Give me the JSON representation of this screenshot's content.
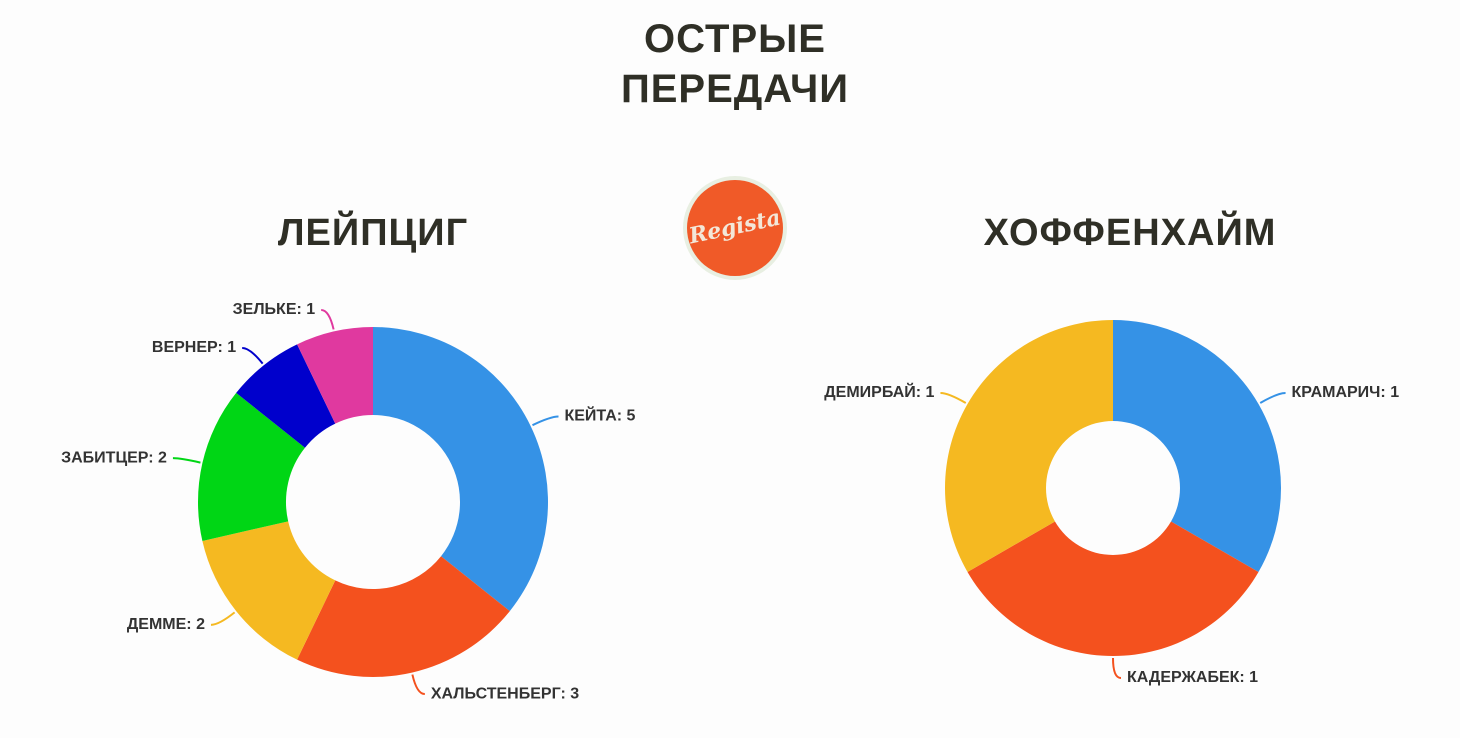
{
  "title": "ОСТРЫЕ ПЕРЕДАЧИ",
  "logo": "Regista",
  "chart_data": [
    {
      "type": "pie",
      "title": "ЛЕЙПЦИГ",
      "values": [
        5,
        3,
        2,
        2,
        1,
        1
      ],
      "value_labels": [
        "КЕЙТА: 5",
        "ХАЛЬСТЕНБЕРГ: 3",
        "ДЕММЕ: 2",
        "ЗАБИТЦЕР: 2",
        "ВЕРНЕР: 1",
        "ЗЕЛЬКЕ: 1"
      ],
      "colors": [
        "#3592e6",
        "#f4511e",
        "#f5b921",
        "#00d615",
        "#0000cc",
        "#e0399f"
      ]
    },
    {
      "type": "pie",
      "title": "ХОФФЕНХАЙМ",
      "values": [
        1,
        1,
        1
      ],
      "value_labels": [
        "КРАМАРИЧ: 1",
        "КАДЕРЖАБЕК: 1",
        "ДЕМИРБАЙ: 1"
      ],
      "colors": [
        "#3592e6",
        "#f4511e",
        "#f5b921"
      ]
    }
  ]
}
